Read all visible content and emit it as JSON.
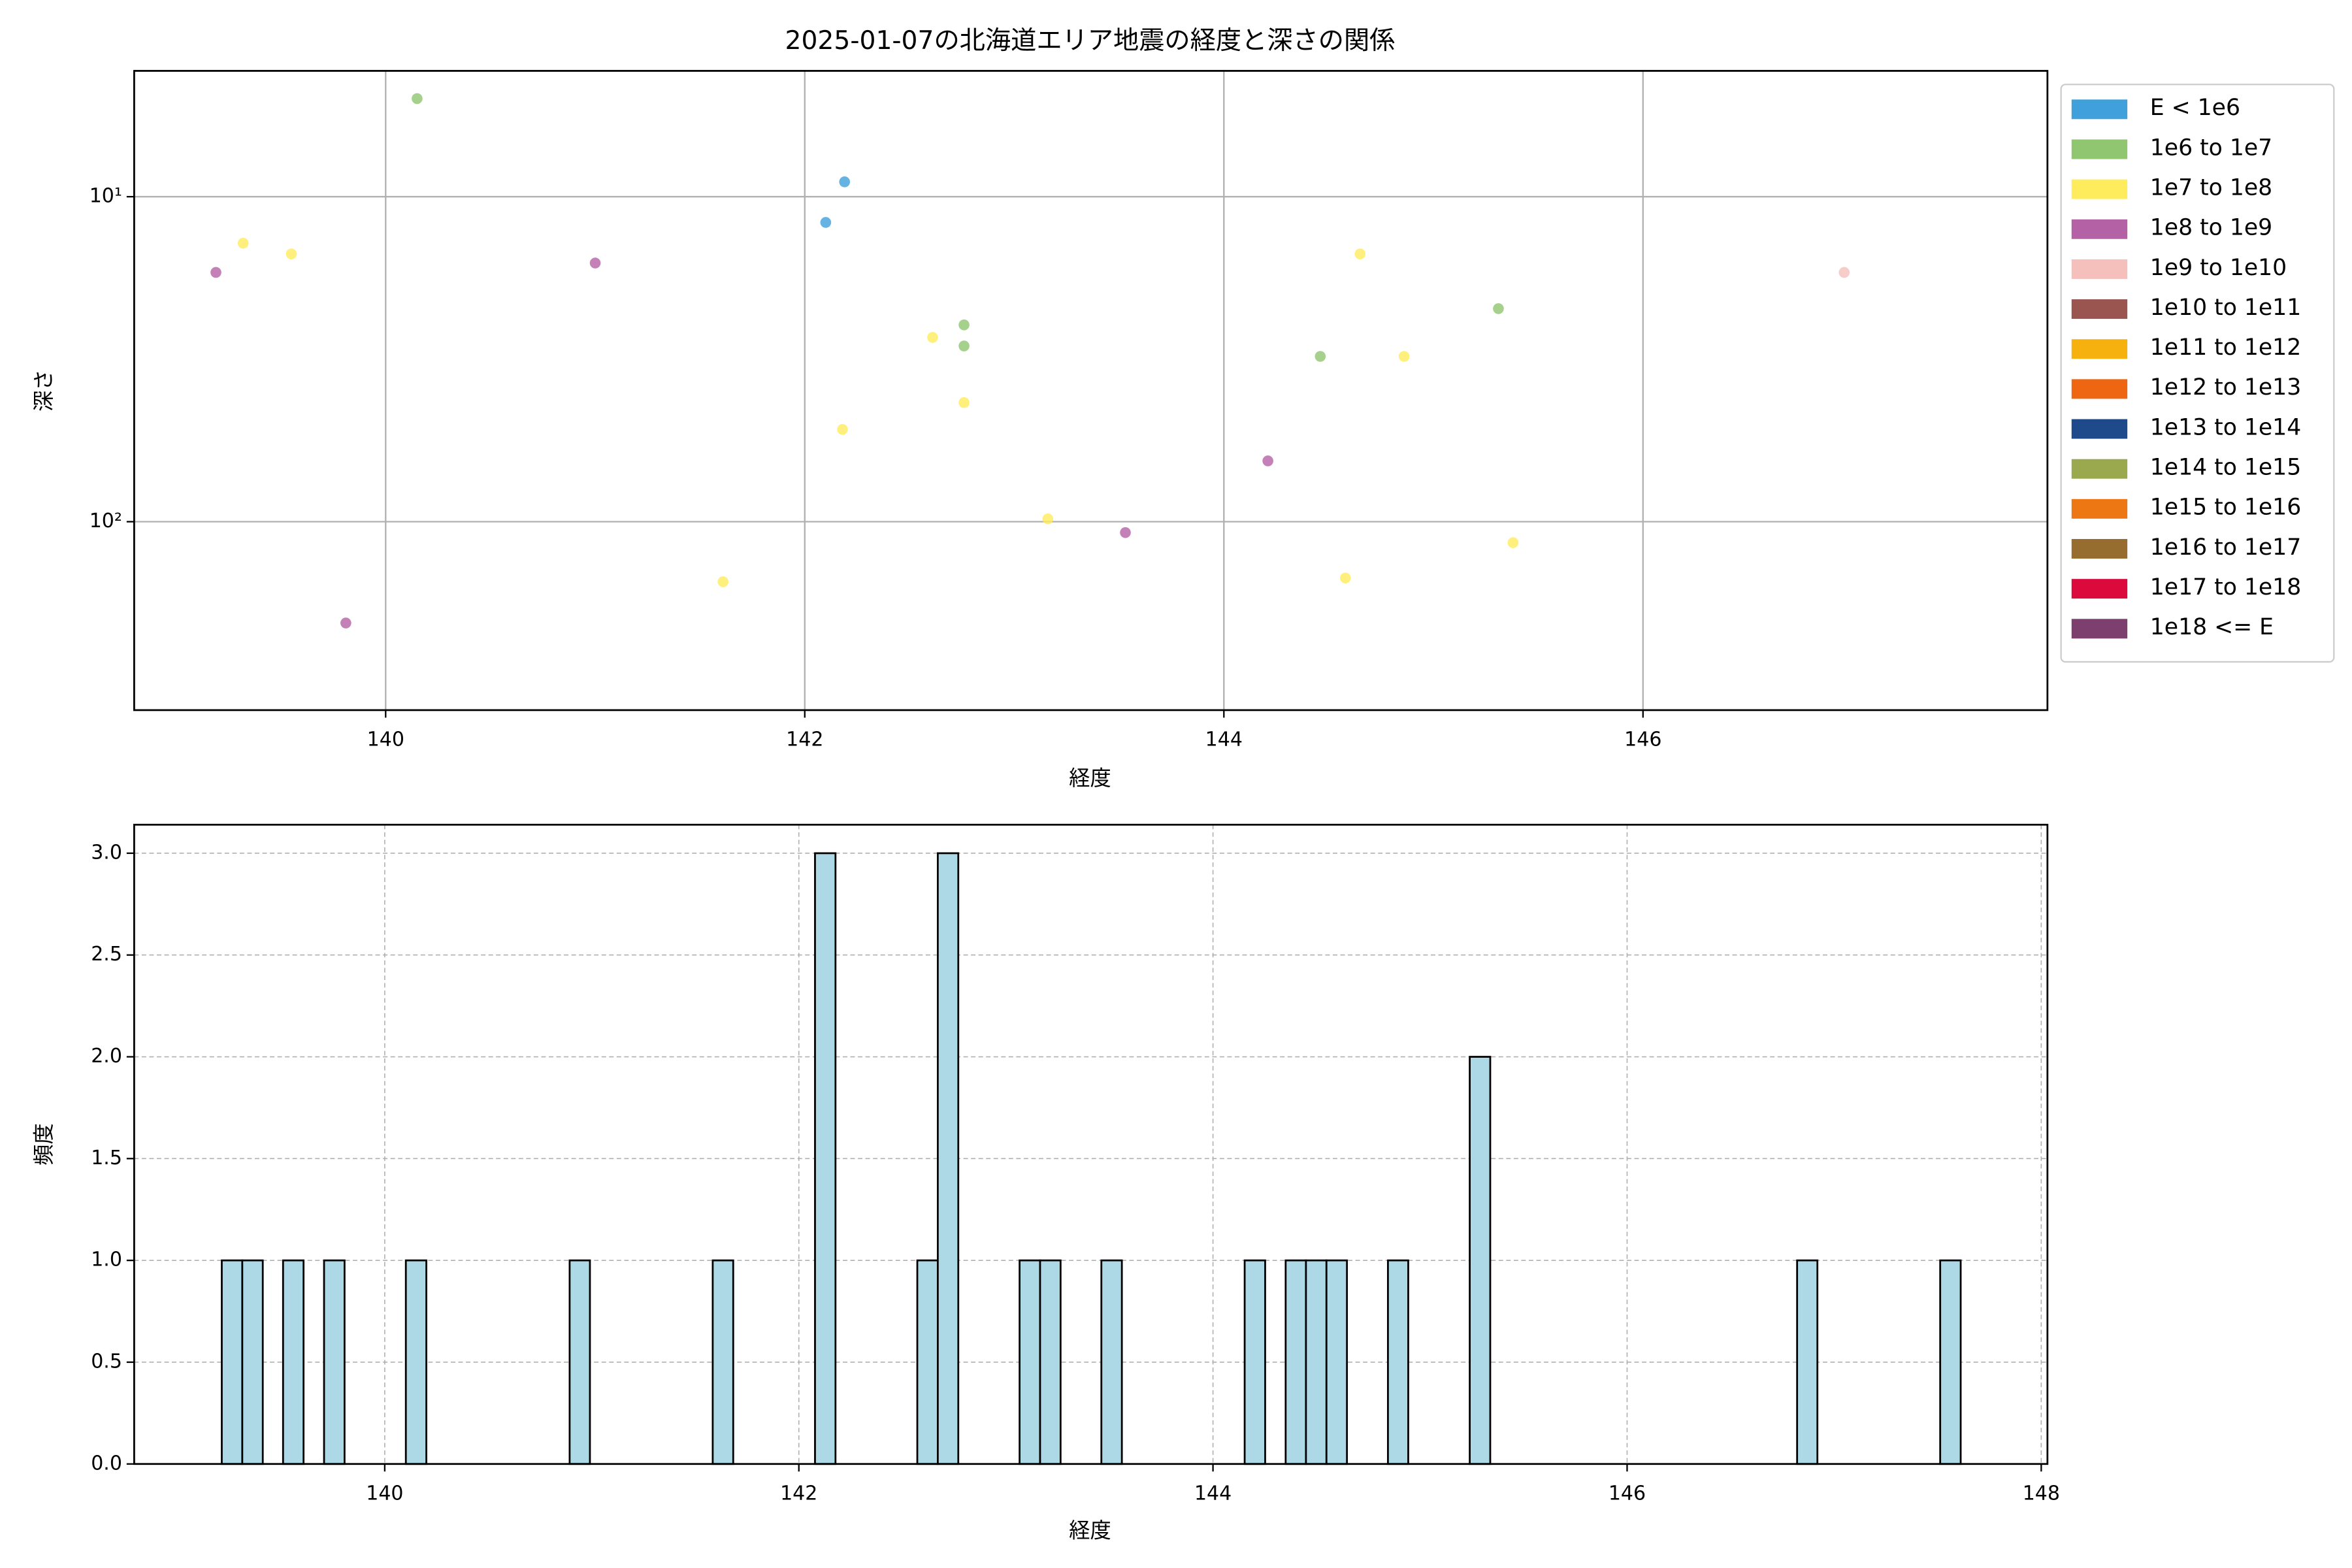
{
  "chart_data": [
    {
      "type": "scatter",
      "title": "2025-01-07の北海道エリア地震の経度と深さの関係",
      "xlabel": "経度",
      "ylabel": "深さ",
      "xlim": [
        138.8,
        147.93
      ],
      "xticks": [
        140,
        142,
        144,
        146
      ],
      "ylim": [
        380,
        4.1
      ],
      "yscale": "log",
      "yticks": [
        {
          "value": 10,
          "label": "10¹"
        },
        {
          "value": 100,
          "label": "10²"
        }
      ],
      "grid": true,
      "grid_style": "solid",
      "legend": "outside right",
      "series": [
        {
          "name": "E < 1e6",
          "color": "#3fa0db",
          "x": [
            142.1,
            142.19
          ],
          "y": [
            12.0,
            9.0
          ]
        },
        {
          "name": "1e6 to 1e7",
          "color": "#8fc66f",
          "x": [
            140.15,
            142.76,
            142.76,
            144.46,
            145.31
          ],
          "y": [
            4.99,
            24.8,
            28.8,
            31,
            22.1
          ]
        },
        {
          "name": "1e7 to 1e8",
          "color": "#ffec5c",
          "x": [
            139.32,
            139.55,
            141.61,
            142.18,
            142.61,
            142.76,
            143.16,
            144.58,
            144.65,
            144.86,
            145.38
          ],
          "y": [
            13.9,
            15.0,
            153,
            52,
            27.1,
            43,
            98,
            149,
            15.0,
            31,
            116
          ]
        },
        {
          "name": "1e8 to 1e9",
          "color": "#b462a5",
          "x": [
            139.19,
            139.81,
            141.0,
            143.53,
            144.21
          ],
          "y": [
            17.1,
            205,
            16.0,
            108,
            65
          ]
        },
        {
          "name": "1e9 to 1e10",
          "color": "#f5c0bb",
          "x": [
            146.96
          ],
          "y": [
            17.1
          ]
        },
        {
          "name": "1e10 to 1e11",
          "color": "#9a5551",
          "x": [],
          "y": []
        },
        {
          "name": "1e11 to 1e12",
          "color": "#f6b10f",
          "x": [],
          "y": []
        },
        {
          "name": "1e12 to 1e13",
          "color": "#ef6612",
          "x": [],
          "y": []
        },
        {
          "name": "1e13 to 1e14",
          "color": "#1e4a8c",
          "x": [],
          "y": []
        },
        {
          "name": "1e14 to 1e15",
          "color": "#9aa94e",
          "x": [],
          "y": []
        },
        {
          "name": "1e15 to 1e16",
          "color": "#ed7712",
          "x": [],
          "y": []
        },
        {
          "name": "1e16 to 1e17",
          "color": "#976d2f",
          "x": [],
          "y": []
        },
        {
          "name": "1e17 to 1e18",
          "color": "#dc0a3c",
          "x": [],
          "y": []
        },
        {
          "name": "1e18 <= E",
          "color": "#7c3f6e",
          "x": [],
          "y": []
        }
      ]
    },
    {
      "type": "histogram",
      "xlabel": "経度",
      "ylabel": "頻度",
      "color": "#add8e6",
      "edgecolor": "#000000",
      "xlim": [
        138.79,
        148.03
      ],
      "xticks": [
        140,
        142,
        144,
        146,
        148
      ],
      "ylim": [
        0,
        3.14
      ],
      "yticks": [
        {
          "value": 0,
          "label": "0.0"
        },
        0.5,
        {
          "value": 1,
          "label": "1.0"
        },
        1.5,
        {
          "value": 2,
          "label": "2.0"
        },
        2.5,
        {
          "value": 3,
          "label": "3.0"
        }
      ],
      "grid": true,
      "grid_style": "dashed",
      "bins": [
        139.213,
        139.312,
        139.411,
        139.509,
        139.608,
        139.707,
        139.806,
        139.905,
        140.003,
        140.102,
        140.201,
        140.3,
        140.399,
        140.497,
        140.596,
        140.695,
        140.794,
        140.893,
        140.991,
        141.09,
        141.189,
        141.288,
        141.387,
        141.485,
        141.584,
        141.683,
        141.782,
        141.881,
        141.979,
        142.078,
        142.177,
        142.276,
        142.375,
        142.473,
        142.572,
        142.671,
        142.77,
        142.869,
        142.967,
        143.066,
        143.165,
        143.264,
        143.363,
        143.461,
        143.56,
        143.659,
        143.758,
        143.857,
        143.955,
        144.054,
        144.153,
        144.252,
        144.351,
        144.449,
        144.548,
        144.647,
        144.746,
        144.845,
        144.943,
        145.042,
        145.141,
        145.24,
        145.339,
        145.437,
        145.536,
        145.635,
        145.734,
        145.833,
        145.931,
        146.03,
        146.129,
        146.228,
        146.327,
        146.425,
        146.524,
        146.623,
        146.722,
        146.821,
        146.919,
        147.018,
        147.117,
        147.216,
        147.315,
        147.413,
        147.512,
        147.611
      ],
      "values": [
        1,
        1,
        0,
        1,
        0,
        1,
        0,
        0,
        0,
        1,
        0,
        0,
        0,
        0,
        0,
        0,
        0,
        1,
        0,
        0,
        0,
        0,
        0,
        0,
        1,
        0,
        0,
        0,
        0,
        3,
        0,
        0,
        0,
        0,
        1,
        3,
        0,
        0,
        0,
        1,
        1,
        0,
        0,
        1,
        0,
        0,
        0,
        0,
        0,
        0,
        1,
        0,
        1,
        1,
        1,
        0,
        0,
        1,
        0,
        0,
        0,
        2,
        0,
        0,
        0,
        0,
        0,
        0,
        0,
        0,
        0,
        0,
        0,
        0,
        0,
        0,
        0,
        1,
        0,
        0,
        0,
        0,
        0,
        0,
        1
      ]
    }
  ]
}
